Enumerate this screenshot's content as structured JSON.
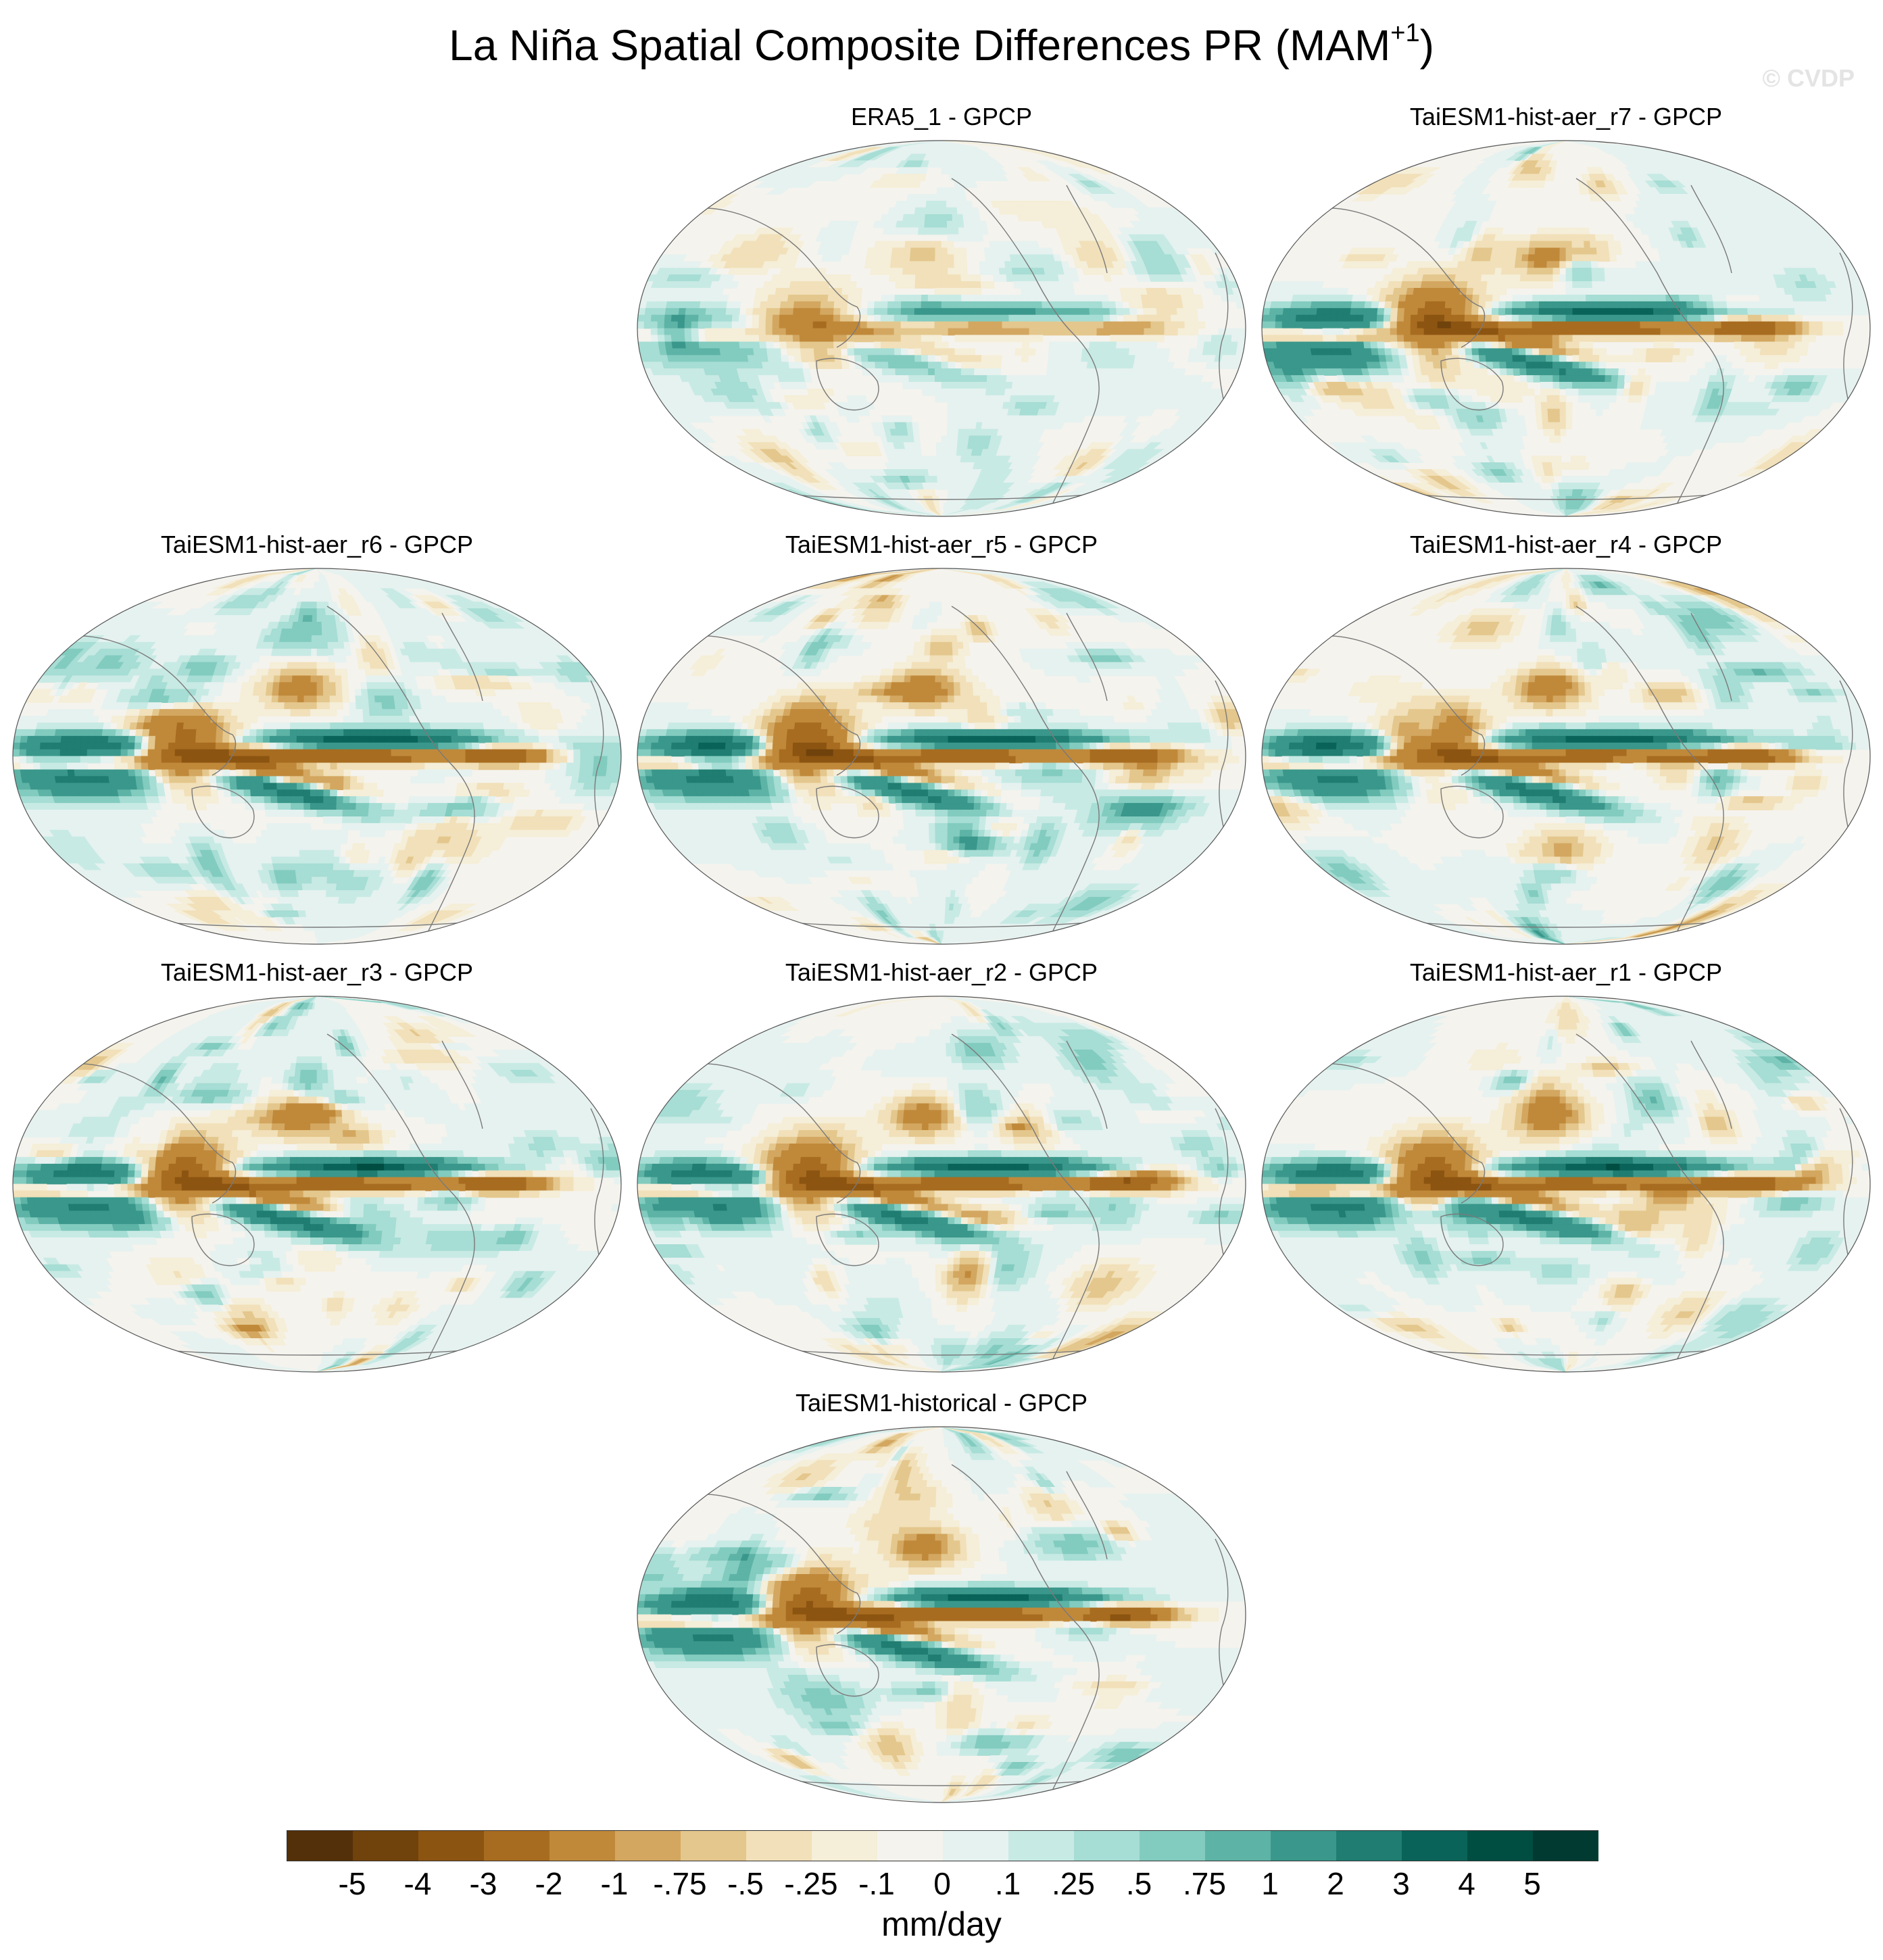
{
  "figure": {
    "title_main": "La Niña Spatial Composite Differences PR (MAM",
    "title_sup": "+1",
    "title_end": ")",
    "watermark": "© CVDP"
  },
  "panels": [
    {
      "title": "ERA5_1 - GPCP",
      "seed": 3,
      "amp": 0.35
    },
    {
      "title": "TaiESM1-hist-aer_r7 - GPCP",
      "seed": 7,
      "amp": 1.0
    },
    {
      "title": "TaiESM1-hist-aer_r6 - GPCP",
      "seed": 6,
      "amp": 1.0
    },
    {
      "title": "TaiESM1-hist-aer_r5 - GPCP",
      "seed": 5,
      "amp": 1.0
    },
    {
      "title": "TaiESM1-hist-aer_r4 - GPCP",
      "seed": 4,
      "amp": 1.0
    },
    {
      "title": "TaiESM1-hist-aer_r3 - GPCP",
      "seed": 13,
      "amp": 1.0
    },
    {
      "title": "TaiESM1-hist-aer_r2 - GPCP",
      "seed": 2,
      "amp": 1.0
    },
    {
      "title": "TaiESM1-hist-aer_r1 - GPCP",
      "seed": 1,
      "amp": 1.0
    },
    {
      "title": "TaiESM1-historical - GPCP",
      "seed": 11,
      "amp": 1.0
    }
  ],
  "colorbar": {
    "units": "mm/day",
    "labels": [
      "-5",
      "-4",
      "-3",
      "-2",
      "-1",
      "-.75",
      "-.5",
      "-.25",
      "-.1",
      "0",
      ".1",
      ".25",
      ".5",
      ".75",
      "1",
      "2",
      "3",
      "4",
      "5"
    ],
    "colors": [
      "#533009",
      "#70420c",
      "#8c5411",
      "#a86c20",
      "#c0893a",
      "#d3a760",
      "#e4c78d",
      "#f1e0b9",
      "#f5eed8",
      "#f5f3ee",
      "#e6f2f0",
      "#c8eae4",
      "#a6ddd4",
      "#82cbbf",
      "#5db3a6",
      "#3a978b",
      "#1f7d71",
      "#0a6358",
      "#004d42",
      "#003a30"
    ]
  }
}
